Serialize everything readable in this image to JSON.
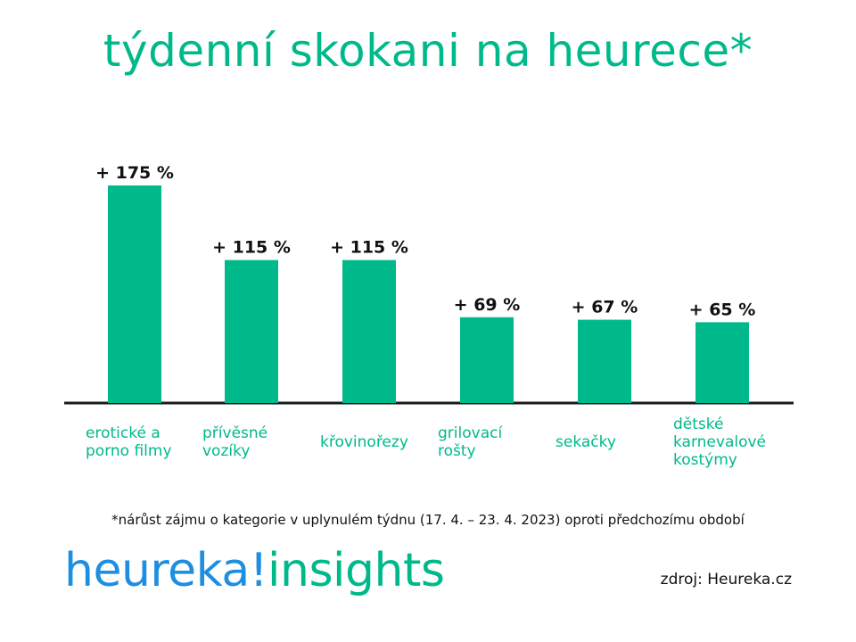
{
  "title": "týdenní skokani na heurece*",
  "chart_data": {
    "type": "bar",
    "categories": [
      [
        "erotické a",
        "porno filmy"
      ],
      [
        "přívěsné",
        "vozíky"
      ],
      [
        "křovinořezy"
      ],
      [
        "grilovací",
        "rošty"
      ],
      [
        "sekačky"
      ],
      [
        "dětské",
        "karnevalové",
        "kostýmy"
      ]
    ],
    "values": [
      175,
      115,
      115,
      69,
      67,
      65
    ],
    "value_labels": [
      "+ 175 %",
      "+ 115 %",
      "+ 115 %",
      "+ 69 %",
      "+ 67 %",
      "+ 65 %"
    ],
    "unit": "%",
    "ylim": [
      0,
      175
    ],
    "color": "#00b98a"
  },
  "footnote": "*nárůst zájmu o kategorie v uplynulém týdnu (17. 4. – 23. 4. 2023) oproti předchozímu období",
  "logo": {
    "part1": "heureka!",
    "part2": "insights"
  },
  "source": "zdroj: Heureka.cz",
  "colors": {
    "green": "#00b98a",
    "blue": "#1d8ee0"
  }
}
